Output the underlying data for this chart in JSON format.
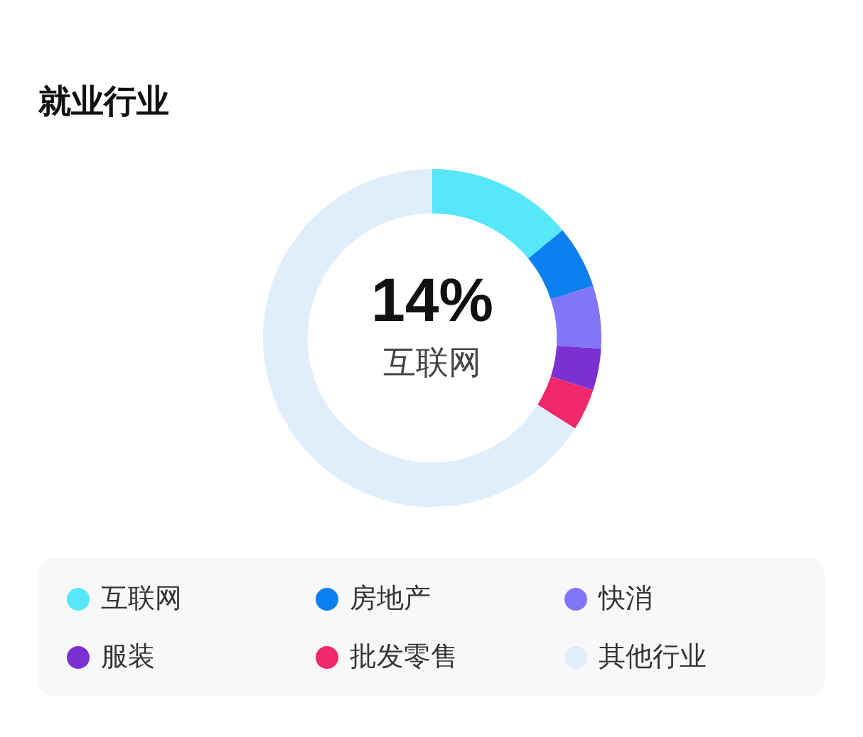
{
  "chart_data": {
    "type": "donut",
    "title": "就业行业",
    "categories": [
      "互联网",
      "房地产",
      "快消",
      "服装",
      "批发零售",
      "其他行业"
    ],
    "values": [
      14,
      6,
      6,
      4,
      4,
      66
    ],
    "colors": [
      "#56e7fa",
      "#0b7ff0",
      "#8375f7",
      "#7b30d3",
      "#f0286b",
      "#e0eefc"
    ],
    "annotations": [
      "14%",
      "互联网"
    ],
    "legend": "bottom"
  }
}
